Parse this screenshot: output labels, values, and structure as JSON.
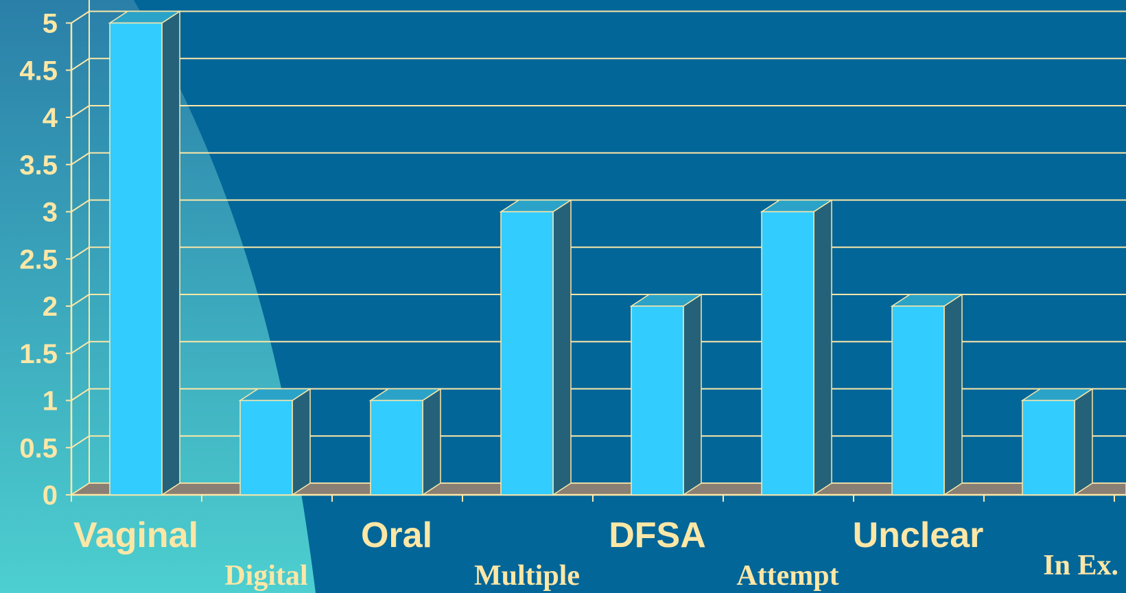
{
  "chart_data": {
    "type": "bar",
    "categories": [
      "Vaginal",
      "Digital",
      "Oral",
      "Multiple",
      "DFSA",
      "Attempt",
      "Unclear",
      "In Ex."
    ],
    "values": [
      5,
      1,
      1,
      3,
      2,
      3,
      2,
      1
    ],
    "ylim": [
      0,
      5
    ],
    "yticks": [
      "0",
      "0.5",
      "1",
      "1.5",
      "2",
      "2.5",
      "3",
      "3.5",
      "4",
      "4.5",
      "5"
    ],
    "title": "",
    "xlabel": "",
    "ylabel": "",
    "grid": true,
    "legend": "none",
    "colors": {
      "background": "#036699",
      "background_highlight": "#4dcfd0",
      "bar_front": "#33ccff",
      "bar_top": "#2ba3c8",
      "bar_side": "#25627a",
      "floor": "#8a7f74",
      "axis_lines": "#fde8a8",
      "label_text": "#fde7a6"
    }
  }
}
